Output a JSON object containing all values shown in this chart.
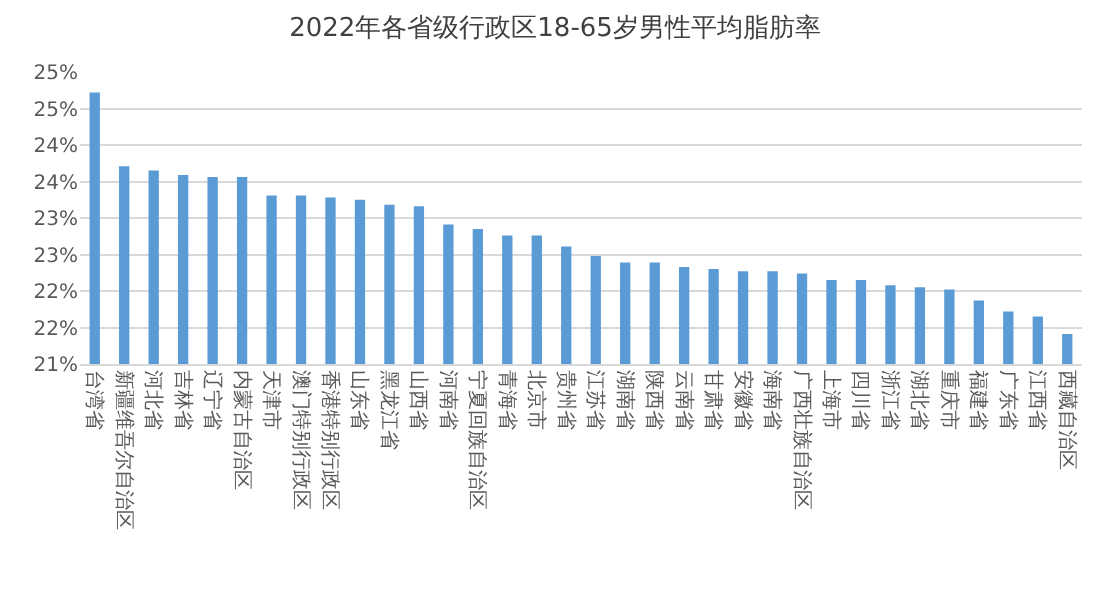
{
  "chart_data": {
    "type": "bar",
    "title": "2022年各省级行政区18-65岁男性平均脂肪率",
    "categories": [
      "台湾省",
      "新疆维吾尔自治区",
      "河北省",
      "吉林省",
      "辽宁省",
      "内蒙古自治区",
      "天津市",
      "澳门特别行政区",
      "香港特别行政区",
      "山东省",
      "黑龙江省",
      "山西省",
      "河南省",
      "宁夏回族自治区",
      "青海省",
      "北京市",
      "贵州省",
      "江苏省",
      "湖南省",
      "陕西省",
      "云南省",
      "甘肃省",
      "安徽省",
      "海南省",
      "广西壮族自治区",
      "上海市",
      "四川省",
      "浙江省",
      "湖北省",
      "重庆市",
      "福建省",
      "广东省",
      "江西省",
      "西藏自治区"
    ],
    "values": [
      24.72,
      23.71,
      23.65,
      23.59,
      23.56,
      23.56,
      23.31,
      23.31,
      23.28,
      23.25,
      23.18,
      23.16,
      22.91,
      22.85,
      22.76,
      22.76,
      22.61,
      22.48,
      22.39,
      22.39,
      22.33,
      22.3,
      22.27,
      22.27,
      22.24,
      22.15,
      22.15,
      22.08,
      22.05,
      22.02,
      21.87,
      21.72,
      21.65,
      21.41
    ],
    "color": "#5b9bd5",
    "ylim": [
      21,
      25
    ],
    "yticks": [
      {
        "value": 21,
        "label": "21%"
      },
      {
        "value": 21.5,
        "label": "22%"
      },
      {
        "value": 22,
        "label": "22%"
      },
      {
        "value": 22.5,
        "label": "23%"
      },
      {
        "value": 23,
        "label": "23%"
      },
      {
        "value": 23.5,
        "label": "24%"
      },
      {
        "value": 24,
        "label": "24%"
      },
      {
        "value": 24.5,
        "label": "25%"
      },
      {
        "value": 25,
        "label": "25%"
      }
    ],
    "grid": "y"
  }
}
